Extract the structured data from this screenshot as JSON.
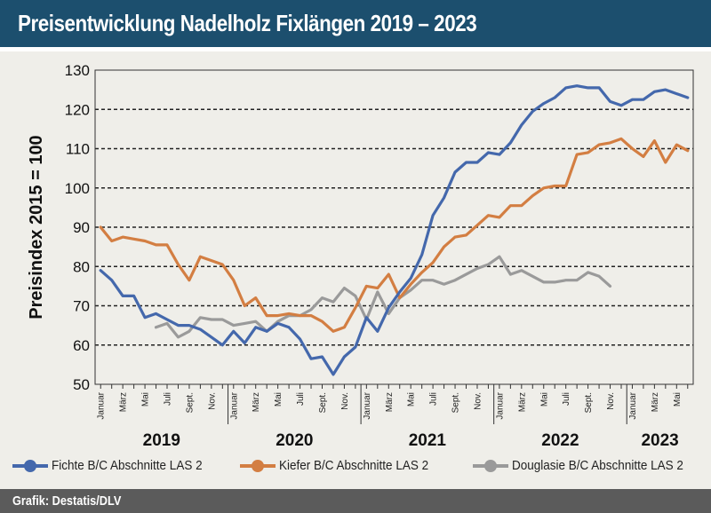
{
  "title": "Preisentwicklung Nadelholz Fixlängen 2019 – 2023",
  "credit": "Grafik: Destatis/DLV",
  "chart_data": {
    "type": "line",
    "title": "Preisentwicklung Nadelholz Fixlängen 2019 – 2023",
    "ylabel": "Preisindex 2015 = 100",
    "xlabel": "",
    "ylim": [
      50,
      130
    ],
    "yticks": [
      50,
      60,
      70,
      80,
      90,
      100,
      110,
      120,
      130
    ],
    "grid": "horizontal",
    "legend_position": "bottom",
    "month_tick_labels": [
      "Januar",
      "",
      "März",
      "",
      "Mai",
      "",
      "Juli",
      "",
      "Sept.",
      "",
      "Nov.",
      ""
    ],
    "years": [
      "2019",
      "2020",
      "2021",
      "2022",
      "2023"
    ],
    "x_start": "2019-01",
    "x_end": "2023-06",
    "series": [
      {
        "name": "Fichte B/C Abschnitte LAS 2",
        "color": "#4468ac",
        "start": "2019-01",
        "values": [
          79,
          76.5,
          72.5,
          72.5,
          67,
          68,
          66.5,
          65,
          65,
          64,
          62,
          60,
          63.5,
          60.5,
          64.5,
          63.5,
          65.5,
          64.5,
          61.5,
          56.5,
          57,
          52.5,
          57,
          59.5,
          67,
          63.5,
          69.5,
          73.5,
          77,
          83,
          93,
          97.5,
          104,
          106.5,
          106.5,
          109,
          108.5,
          111.5,
          116,
          119.5,
          121.5,
          123,
          125.5,
          126,
          125.5,
          125.5,
          122,
          121,
          122.5,
          122.5,
          124.5,
          125,
          124,
          123
        ]
      },
      {
        "name": "Kiefer B/C Abschnitte LAS 2",
        "color": "#d37e42",
        "start": "2019-01",
        "values": [
          90,
          86.5,
          87.5,
          87,
          86.5,
          85.5,
          85.5,
          80.5,
          76.5,
          82.5,
          81.5,
          80.5,
          76.5,
          70,
          72,
          67.5,
          67.5,
          68,
          67.5,
          67.5,
          66,
          63.5,
          64.5,
          69.5,
          75,
          74.5,
          78,
          72,
          75.5,
          78.5,
          81,
          85,
          87.5,
          88,
          90.5,
          93,
          92.5,
          95.5,
          95.5,
          98,
          100,
          100.5,
          100.5,
          108.5,
          109,
          111,
          111.5,
          112.5,
          110,
          108,
          112,
          106.5,
          111,
          109.5
        ]
      },
      {
        "name": "Douglasie B/C Abschnitte LAS 2",
        "color": "#9a9a9a",
        "start": "2019-06",
        "values": [
          64.5,
          65.5,
          62,
          63.5,
          67,
          66.5,
          66.5,
          65,
          65.5,
          66,
          63.5,
          66,
          67.5,
          67.5,
          69,
          72,
          71,
          74.5,
          72.5,
          66.5,
          73.5,
          68,
          72,
          74,
          76.5,
          76.5,
          75.5,
          76.5,
          78,
          79.5,
          80.5,
          82.5,
          78,
          79,
          77.5,
          76,
          76,
          76.5,
          76.5,
          78.5,
          77.5,
          75
        ]
      }
    ]
  }
}
